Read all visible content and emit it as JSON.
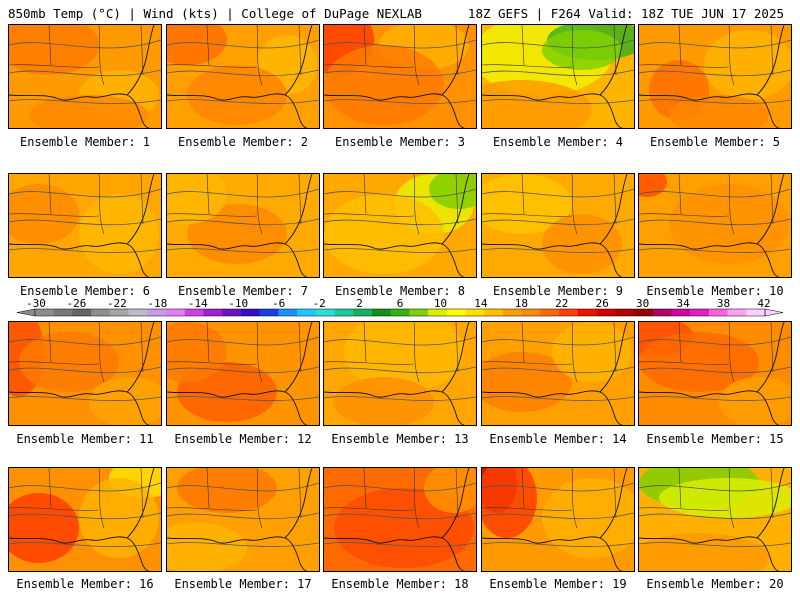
{
  "header": {
    "left": "850mb Temp (°C) | Wind (kts) | College of DuPage NEXLAB",
    "right": "18Z GEFS | F264 Valid: 18Z TUE JUN 17 2025"
  },
  "panels": [
    {
      "label": "Ensemble Member: 1"
    },
    {
      "label": "Ensemble Member: 2"
    },
    {
      "label": "Ensemble Member: 3"
    },
    {
      "label": "Ensemble Member: 4"
    },
    {
      "label": "Ensemble Member: 5"
    },
    {
      "label": "Ensemble Member: 6"
    },
    {
      "label": "Ensemble Member: 7"
    },
    {
      "label": "Ensemble Member: 8"
    },
    {
      "label": "Ensemble Member: 9"
    },
    {
      "label": "Ensemble Member: 10"
    },
    {
      "label": "Ensemble Member: 11"
    },
    {
      "label": "Ensemble Member: 12"
    },
    {
      "label": "Ensemble Member: 13"
    },
    {
      "label": "Ensemble Member: 14"
    },
    {
      "label": "Ensemble Member: 15"
    },
    {
      "label": "Ensemble Member: 16"
    },
    {
      "label": "Ensemble Member: 17"
    },
    {
      "label": "Ensemble Member: 18"
    },
    {
      "label": "Ensemble Member: 19"
    },
    {
      "label": "Ensemble Member: 20"
    }
  ],
  "colorbar": {
    "ticks": [
      "-30",
      "-26",
      "-22",
      "-18",
      "-14",
      "-10",
      "-6",
      "-2",
      "2",
      "6",
      "10",
      "14",
      "18",
      "22",
      "26",
      "30",
      "34",
      "38",
      "42"
    ],
    "colors": [
      "#8c8c8c",
      "#787878",
      "#646464",
      "#8f8f8f",
      "#a6a6a6",
      "#bcbcc8",
      "#c89be8",
      "#e080f0",
      "#d040e0",
      "#a020d0",
      "#7010c0",
      "#3010c0",
      "#1840e0",
      "#1e90ff",
      "#20c8ff",
      "#28e0d8",
      "#20c8a0",
      "#18b060",
      "#109020",
      "#38b010",
      "#80d000",
      "#d8f000",
      "#ffff00",
      "#ffe000",
      "#ffc000",
      "#ffa000",
      "#ff8c00",
      "#ff6a00",
      "#ff4000",
      "#ee1000",
      "#d00000",
      "#b00000",
      "#900000",
      "#b00060",
      "#d000a0",
      "#e020c0",
      "#ff60e0",
      "#ffa0f0",
      "#ffd0ff"
    ]
  }
}
